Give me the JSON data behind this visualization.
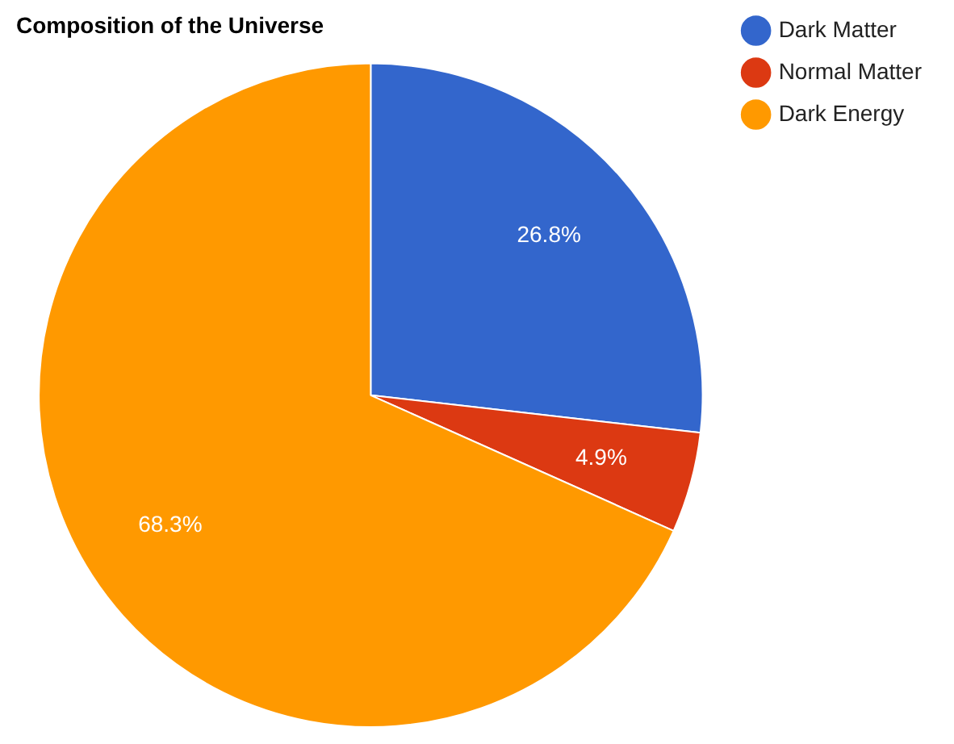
{
  "chart_data": {
    "type": "pie",
    "title": "Composition of the Universe",
    "categories": [
      "Dark Matter",
      "Normal Matter",
      "Dark Energy"
    ],
    "values": [
      26.8,
      4.9,
      68.3
    ],
    "colors": [
      "#3366cc",
      "#dc3912",
      "#ff9900"
    ],
    "value_labels": [
      "26.8%",
      "4.9%",
      "68.3%"
    ],
    "legend": "right"
  }
}
